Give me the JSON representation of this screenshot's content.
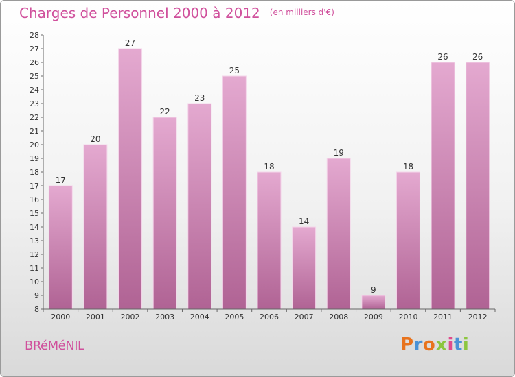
{
  "header": {
    "title": "Charges de Personnel 2000 à 2012",
    "subtitle": "(en milliers d'€)"
  },
  "footer": {
    "town": "BRéMéNIL",
    "logo_text": "Proxiti"
  },
  "colors": {
    "title": "#d0509c",
    "bar_top": "#e4a9d0",
    "bar_bottom": "#b06394",
    "bar_edge": "#f4d6ea"
  },
  "chart_data": {
    "type": "bar",
    "title": "Charges de Personnel 2000 à 2012",
    "subtitle": "(en milliers d'€)",
    "categories": [
      "2000",
      "2001",
      "2002",
      "2003",
      "2004",
      "2005",
      "2006",
      "2007",
      "2008",
      "2009",
      "2010",
      "2011",
      "2012"
    ],
    "values": [
      17,
      20,
      27,
      22,
      23,
      25,
      18,
      14,
      19,
      9,
      18,
      26,
      26
    ],
    "xlabel": "",
    "ylabel": "",
    "ylim": [
      8,
      28
    ],
    "yticks": [
      8,
      9,
      10,
      11,
      12,
      13,
      14,
      15,
      16,
      17,
      18,
      19,
      20,
      21,
      22,
      23,
      24,
      25,
      26,
      27,
      28
    ],
    "grid": false,
    "legend": "none",
    "data_labels": true
  }
}
